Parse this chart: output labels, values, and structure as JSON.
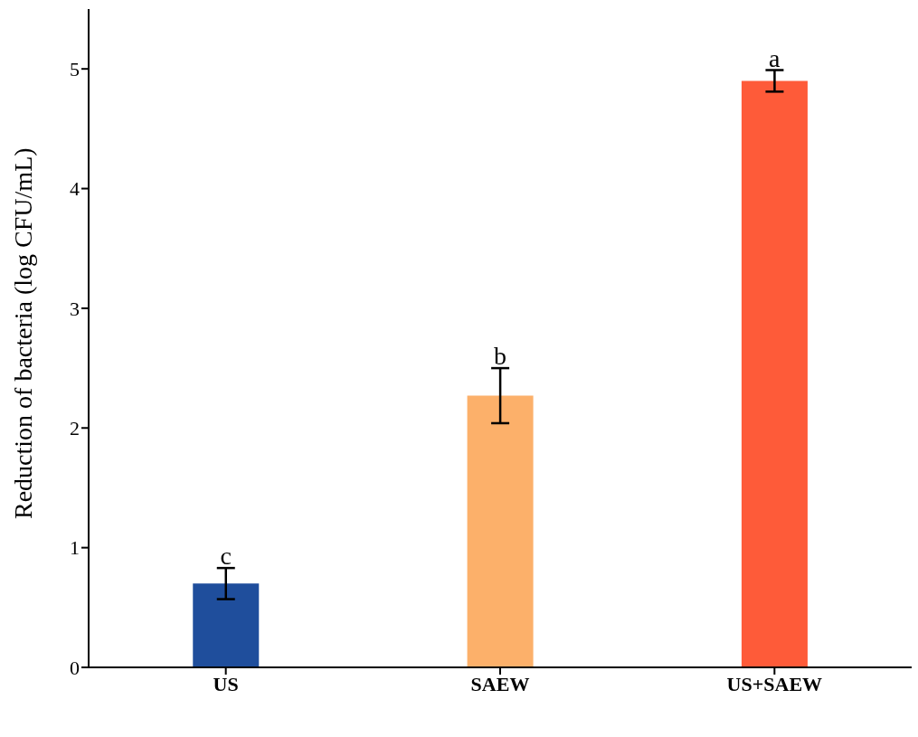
{
  "chart_data": {
    "type": "bar",
    "ylabel": "Reduction of bacteria (log CFU/mL)",
    "categories": [
      "US",
      "SAEW",
      "US+SAEW"
    ],
    "values": [
      0.7,
      2.27,
      4.9
    ],
    "errors": [
      0.13,
      0.23,
      0.09
    ],
    "colors": [
      "#1f4e9c",
      "#fcb06a",
      "#fe5b39"
    ],
    "ylim": [
      0,
      5.5
    ],
    "yticks": [
      0,
      1,
      2,
      3,
      4,
      5
    ],
    "grid": false,
    "annotations": [
      {
        "text": "c",
        "x": "US",
        "y": 0.83
      },
      {
        "text": "b",
        "x": "SAEW",
        "y": 2.5
      },
      {
        "text": "a",
        "x": "US+SAEW",
        "y": 4.99
      }
    ]
  }
}
